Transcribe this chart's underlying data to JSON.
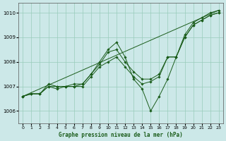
{
  "title": "Graphe pression niveau de la mer (hPa)",
  "bg_color": "#cce8e8",
  "grid_color": "#99ccbb",
  "line_color": "#1a5c1a",
  "xlim": [
    -0.5,
    23.5
  ],
  "ylim": [
    1005.5,
    1010.4
  ],
  "yticks": [
    1006,
    1007,
    1008,
    1009,
    1010
  ],
  "xticks": [
    0,
    1,
    2,
    3,
    4,
    5,
    6,
    7,
    8,
    9,
    10,
    11,
    12,
    13,
    14,
    15,
    16,
    17,
    18,
    19,
    20,
    21,
    22,
    23
  ],
  "series": [
    {
      "x": [
        0,
        1,
        2,
        3,
        4,
        5,
        6,
        7,
        8,
        9,
        10,
        11,
        12,
        13,
        14,
        15,
        16,
        17,
        18,
        19,
        20,
        21,
        22,
        23
      ],
      "y": [
        1006.6,
        1006.7,
        1006.7,
        1007.1,
        1007.0,
        1007.0,
        1007.0,
        1007.1,
        1007.5,
        1008.0,
        1008.5,
        1008.8,
        1008.2,
        1007.3,
        1006.9,
        1006.0,
        1006.6,
        1007.3,
        1008.2,
        1009.1,
        1009.6,
        1009.8,
        1010.0,
        1010.1
      ]
    },
    {
      "x": [
        0,
        1,
        2,
        3,
        4,
        5,
        6,
        7,
        8,
        9,
        10,
        11,
        12,
        13,
        14,
        15,
        16,
        17,
        18,
        19,
        20,
        21,
        22,
        23
      ],
      "y": [
        1006.6,
        1006.7,
        1006.7,
        1007.0,
        1007.0,
        1007.0,
        1007.1,
        1007.1,
        1007.5,
        1007.9,
        1008.4,
        1008.5,
        1008.0,
        1007.6,
        1007.3,
        1007.3,
        1007.5,
        1008.2,
        1008.2,
        1009.0,
        1009.5,
        1009.7,
        1009.9,
        1010.0
      ]
    },
    {
      "x": [
        0,
        23
      ],
      "y": [
        1006.6,
        1010.1
      ]
    },
    {
      "x": [
        0,
        1,
        2,
        3,
        4,
        5,
        6,
        7,
        8,
        9,
        10,
        11,
        12,
        13,
        14,
        15,
        16,
        17,
        18,
        19,
        20,
        21,
        22,
        23
      ],
      "y": [
        1006.6,
        1006.7,
        1006.7,
        1007.0,
        1006.9,
        1007.0,
        1007.0,
        1007.0,
        1007.4,
        1007.8,
        1008.0,
        1008.2,
        1007.8,
        1007.4,
        1007.1,
        1007.2,
        1007.4,
        1008.2,
        1008.2,
        1009.0,
        1009.5,
        1009.7,
        1009.9,
        1010.0
      ]
    }
  ]
}
